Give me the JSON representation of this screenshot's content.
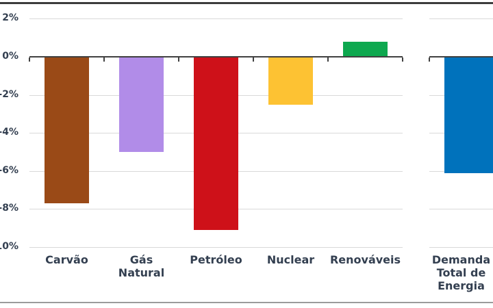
{
  "chart_data": {
    "type": "bar",
    "title": "",
    "xlabel": "",
    "ylabel": "",
    "unit": "%",
    "ylim": [
      -10,
      2
    ],
    "ytick_interval": 2,
    "grid": true,
    "legend": "none",
    "yticks": [
      {
        "value": 2,
        "label": "2%"
      },
      {
        "value": 0,
        "label": "0%"
      },
      {
        "value": -2,
        "label": "-2%"
      },
      {
        "value": -4,
        "label": "-4%"
      },
      {
        "value": -6,
        "label": "-6%"
      },
      {
        "value": -8,
        "label": "-8%"
      },
      {
        "value": -10,
        "label": "-10%"
      }
    ],
    "panels": [
      {
        "name": "fontes-de-energia",
        "categories": [
          "Carvão",
          "Gás\nNatural",
          "Petróleo",
          "Nuclear",
          "Renováveis"
        ],
        "values": [
          -7.7,
          -5.0,
          -9.1,
          -2.5,
          0.8
        ],
        "colors": [
          "#9A4A17",
          "#B18CE8",
          "#CE1119",
          "#FDC233",
          "#0EA84F"
        ]
      },
      {
        "name": "demanda-total",
        "categories": [
          "Demanda\nTotal de\nEnergia"
        ],
        "values": [
          -6.1
        ],
        "colors": [
          "#0072BC"
        ]
      }
    ]
  },
  "styles": {
    "background": "#FFFFFF",
    "axis_color": "#404040",
    "gridline_color": "#D9D9D9",
    "label_color": "#333F50",
    "top_border_color": "#3C3C3C",
    "bottom_border_color": "#9B9B9B"
  }
}
